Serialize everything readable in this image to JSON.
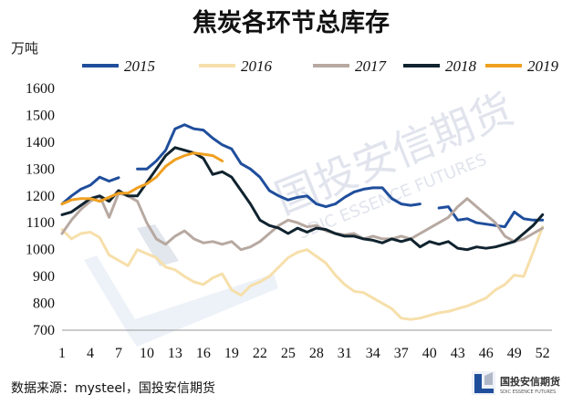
{
  "chart_data": {
    "type": "line",
    "title": "焦炭各环节总库存",
    "ylabel": "万吨",
    "ylim": [
      700,
      1600
    ],
    "yticks": [
      700,
      800,
      900,
      1000,
      1100,
      1200,
      1300,
      1400,
      1500,
      1600
    ],
    "xlim": [
      1,
      53
    ],
    "xticks": [
      1,
      4,
      7,
      10,
      13,
      16,
      19,
      22,
      25,
      28,
      31,
      34,
      37,
      40,
      43,
      46,
      49,
      52
    ],
    "legend_position": "top",
    "series": [
      {
        "name": "2015",
        "color": "#1f4e9c",
        "width": 3,
        "x": [
          1,
          2,
          3,
          4,
          5,
          6,
          7,
          null,
          9,
          10,
          11,
          12,
          13,
          14,
          15,
          16,
          17,
          18,
          19,
          20,
          21,
          22,
          23,
          24,
          25,
          26,
          27,
          28,
          29,
          30,
          31,
          32,
          33,
          34,
          35,
          36,
          37,
          38,
          39,
          null,
          41,
          42,
          43,
          44,
          45,
          46,
          47,
          48,
          49,
          50,
          51,
          52
        ],
        "values": [
          1170,
          1200,
          1225,
          1240,
          1270,
          1255,
          1268,
          null,
          1300,
          1300,
          1330,
          1370,
          1450,
          1465,
          1450,
          1445,
          1415,
          1390,
          1375,
          1320,
          1300,
          1270,
          1220,
          1200,
          1185,
          1195,
          1200,
          1170,
          1160,
          1170,
          1195,
          1215,
          1225,
          1230,
          1230,
          1190,
          1170,
          1165,
          1170,
          null,
          1155,
          1160,
          1110,
          1115,
          1100,
          1095,
          1090,
          1085,
          1140,
          1115,
          1110,
          1110
        ]
      },
      {
        "name": "2016",
        "color": "#f6dfaa",
        "width": 3,
        "x": [
          1,
          2,
          3,
          4,
          5,
          6,
          7,
          8,
          9,
          10,
          11,
          12,
          13,
          14,
          15,
          16,
          17,
          18,
          19,
          20,
          21,
          22,
          23,
          24,
          25,
          26,
          27,
          28,
          29,
          30,
          31,
          32,
          33,
          34,
          35,
          36,
          37,
          38,
          39,
          40,
          41,
          42,
          43,
          44,
          45,
          46,
          47,
          48,
          49,
          50,
          51,
          52
        ],
        "values": [
          1075,
          1040,
          1060,
          1065,
          1045,
          980,
          960,
          940,
          1000,
          985,
          970,
          935,
          925,
          900,
          880,
          870,
          895,
          910,
          850,
          830,
          865,
          880,
          900,
          935,
          970,
          990,
          1000,
          975,
          950,
          905,
          870,
          845,
          840,
          820,
          800,
          780,
          745,
          740,
          745,
          755,
          765,
          770,
          780,
          790,
          805,
          820,
          850,
          870,
          905,
          900,
          990,
          1085
        ]
      },
      {
        "name": "2017",
        "color": "#b7a9a1",
        "width": 3,
        "x": [
          1,
          2,
          3,
          4,
          5,
          6,
          7,
          8,
          9,
          10,
          11,
          12,
          13,
          14,
          15,
          16,
          17,
          18,
          19,
          20,
          21,
          22,
          23,
          24,
          25,
          26,
          27,
          28,
          29,
          30,
          31,
          32,
          33,
          34,
          35,
          36,
          37,
          38,
          39,
          40,
          41,
          42,
          43,
          44,
          45,
          46,
          47,
          48,
          49,
          50,
          51,
          52
        ],
        "values": [
          1060,
          1110,
          1150,
          1180,
          1200,
          1120,
          1210,
          1200,
          1180,
          1100,
          1040,
          1020,
          1050,
          1070,
          1040,
          1025,
          1030,
          1020,
          1030,
          1000,
          1010,
          1030,
          1060,
          1090,
          1110,
          1100,
          1085,
          1090,
          1070,
          1060,
          1055,
          1060,
          1040,
          1050,
          1040,
          1040,
          1050,
          1040,
          1060,
          1080,
          1100,
          1120,
          1160,
          1190,
          1160,
          1130,
          1100,
          1050,
          1030,
          1040,
          1060,
          1080
        ]
      },
      {
        "name": "2018",
        "color": "#10232f",
        "width": 3,
        "x": [
          1,
          2,
          3,
          4,
          5,
          6,
          7,
          8,
          9,
          10,
          11,
          12,
          13,
          14,
          15,
          16,
          17,
          18,
          19,
          20,
          21,
          22,
          23,
          24,
          25,
          26,
          27,
          28,
          29,
          30,
          31,
          32,
          33,
          34,
          35,
          36,
          37,
          38,
          39,
          40,
          41,
          42,
          43,
          44,
          45,
          46,
          47,
          48,
          49,
          50,
          51,
          52
        ],
        "values": [
          1130,
          1140,
          1165,
          1190,
          1200,
          1180,
          1220,
          1200,
          1200,
          1250,
          1300,
          1350,
          1380,
          1370,
          1360,
          1340,
          1280,
          1290,
          1270,
          1220,
          1170,
          1110,
          1090,
          1080,
          1060,
          1080,
          1065,
          1080,
          1075,
          1060,
          1050,
          1050,
          1040,
          1035,
          1025,
          1040,
          1030,
          1040,
          1010,
          1030,
          1020,
          1030,
          1005,
          1000,
          1010,
          1005,
          1010,
          1020,
          1030,
          1060,
          1090,
          1130
        ]
      },
      {
        "name": "2019",
        "color": "#f0a020",
        "width": 3,
        "x": [
          1,
          2,
          3,
          4,
          5,
          6,
          7,
          8,
          9,
          10,
          11,
          12,
          13,
          14,
          15,
          16,
          17,
          18
        ],
        "values": [
          1170,
          1185,
          1190,
          1190,
          1180,
          1195,
          1210,
          1210,
          1230,
          1245,
          1270,
          1310,
          1335,
          1350,
          1360,
          1355,
          1350,
          1330
        ]
      }
    ]
  },
  "source": "数据来源：mysteel，国投安信期货",
  "logo": {
    "name": "国投安信期货",
    "sub": "SDIC ESSENCE FUTURES"
  }
}
